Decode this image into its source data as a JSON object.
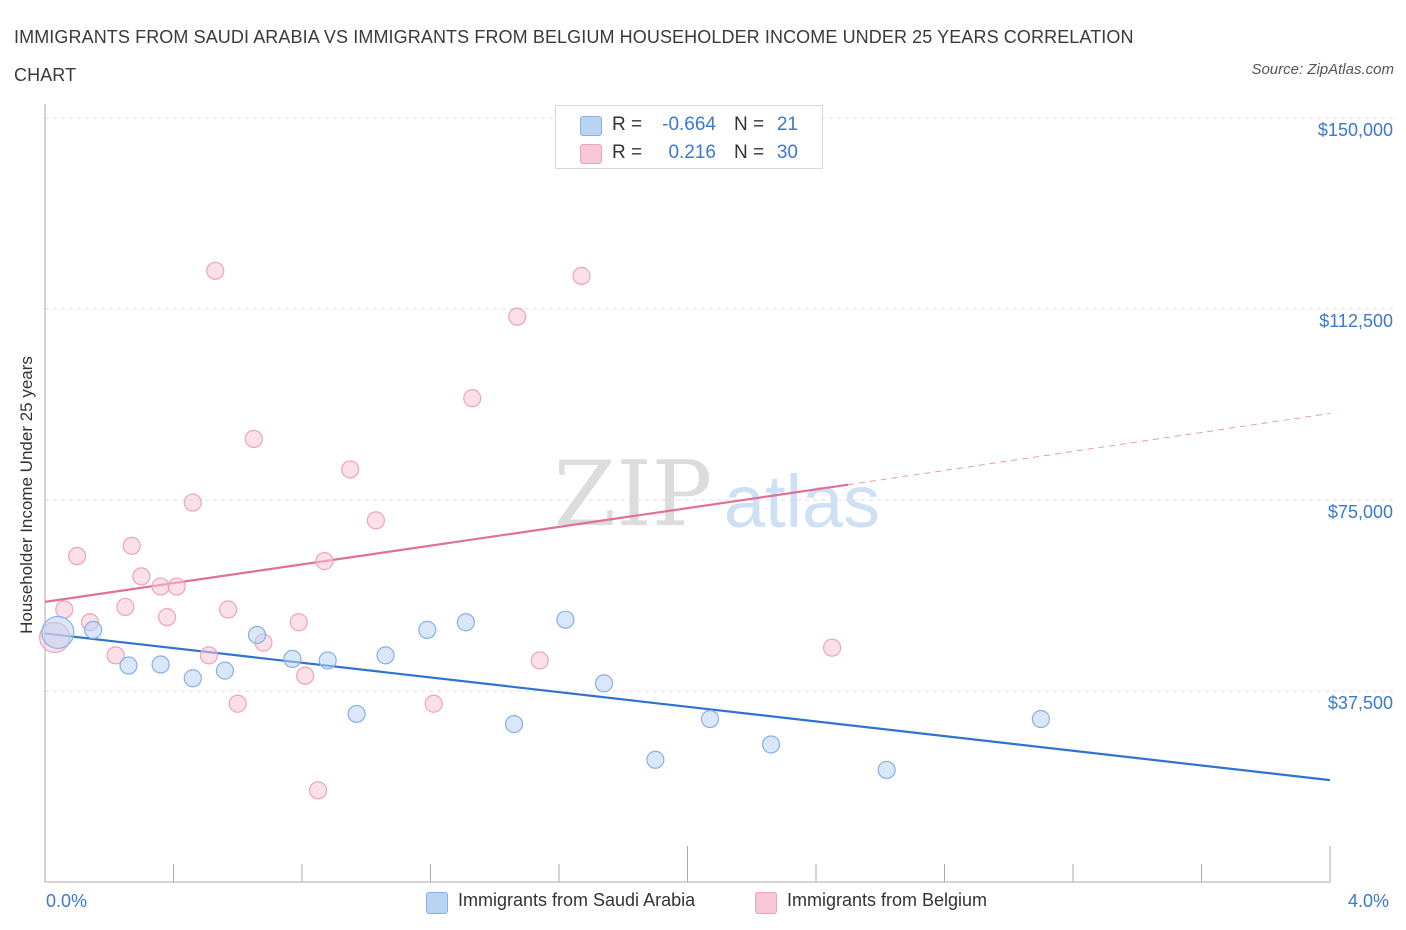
{
  "header": {
    "title": "IMMIGRANTS FROM SAUDI ARABIA VS IMMIGRANTS FROM BELGIUM HOUSEHOLDER INCOME UNDER 25 YEARS CORRELATION CHART",
    "source": "Source: ZipAtlas.com"
  },
  "watermark": {
    "zip": "ZIP",
    "atlas": "atlas"
  },
  "legend_top": {
    "rows": [
      {
        "r_label": "R =",
        "r_value": "-0.664",
        "n_label": "N =",
        "n_value": "21"
      },
      {
        "r_label": "R =",
        "r_value": "0.216",
        "n_label": "N =",
        "n_value": "30"
      }
    ]
  },
  "legend_bottom": {
    "items": [
      {
        "label": "Immigrants from Saudi Arabia"
      },
      {
        "label": "Immigrants from Belgium"
      }
    ]
  },
  "colors": {
    "saudi_fill": "#b9d3f3",
    "saudi_stroke": "#86b0e6",
    "saudi_line": "#2f72d1",
    "belgium_fill": "#f8c7d6",
    "belgium_stroke": "#eea3bb",
    "belgium_line": "#e07095",
    "tick_text": "#3b78d0",
    "grid": "#dddddd"
  },
  "chart_data": {
    "type": "scatter",
    "title": "IMMIGRANTS FROM SAUDI ARABIA VS IMMIGRANTS FROM BELGIUM HOUSEHOLDER INCOME UNDER 25 YEARS CORRELATION CHART",
    "xlabel": "",
    "ylabel": "Householder Income Under 25 years",
    "xlim": [
      0,
      4.0
    ],
    "ylim": [
      15000,
      155000
    ],
    "x_unit": "%",
    "x_tick_labels": [
      "0.0%",
      "4.0%"
    ],
    "y_ticks": [
      37500,
      75000,
      112500,
      150000
    ],
    "y_tick_labels": [
      "$37,500",
      "$75,000",
      "$112,500",
      "$150,000"
    ],
    "grid": "horizontal dashed",
    "legend_position": "bottom-center",
    "series": [
      {
        "name": "Immigrants from Saudi Arabia",
        "r": -0.664,
        "n": 21,
        "points": [
          [
            0.04,
            49000
          ],
          [
            0.15,
            49500
          ],
          [
            0.26,
            42500
          ],
          [
            0.36,
            42700
          ],
          [
            0.46,
            40000
          ],
          [
            0.56,
            41500
          ],
          [
            0.66,
            48500
          ],
          [
            0.77,
            43800
          ],
          [
            0.88,
            43500
          ],
          [
            0.97,
            33000
          ],
          [
            1.06,
            44500
          ],
          [
            1.19,
            49500
          ],
          [
            1.31,
            51000
          ],
          [
            1.46,
            31000
          ],
          [
            1.62,
            51500
          ],
          [
            1.74,
            39000
          ],
          [
            1.9,
            24000
          ],
          [
            2.07,
            32000
          ],
          [
            2.26,
            27000
          ],
          [
            2.62,
            22000
          ],
          [
            3.1,
            32000
          ]
        ],
        "trend": {
          "x": [
            0.0,
            4.0
          ],
          "y": [
            48800,
            20000
          ]
        }
      },
      {
        "name": "Immigrants from Belgium",
        "r": 0.216,
        "n": 30,
        "points": [
          [
            0.03,
            48000
          ],
          [
            0.06,
            53500
          ],
          [
            0.1,
            64000
          ],
          [
            0.14,
            51000
          ],
          [
            0.22,
            44500
          ],
          [
            0.25,
            54000
          ],
          [
            0.27,
            66000
          ],
          [
            0.3,
            60000
          ],
          [
            0.36,
            58000
          ],
          [
            0.38,
            52000
          ],
          [
            0.41,
            58000
          ],
          [
            0.46,
            74500
          ],
          [
            0.51,
            44500
          ],
          [
            0.53,
            120000
          ],
          [
            0.57,
            53500
          ],
          [
            0.6,
            35000
          ],
          [
            0.65,
            87000
          ],
          [
            0.68,
            47000
          ],
          [
            0.79,
            51000
          ],
          [
            0.81,
            40500
          ],
          [
            0.85,
            18000
          ],
          [
            0.87,
            63000
          ],
          [
            0.95,
            81000
          ],
          [
            1.03,
            71000
          ],
          [
            1.21,
            35000
          ],
          [
            1.33,
            95000
          ],
          [
            1.47,
            111000
          ],
          [
            1.54,
            43500
          ],
          [
            1.67,
            119000
          ],
          [
            2.45,
            46000
          ]
        ],
        "trend": {
          "x": [
            0.0,
            2.5
          ],
          "y": [
            55000,
            78000
          ]
        },
        "trend_extension": {
          "x": [
            2.5,
            4.0
          ],
          "y": [
            78000,
            92000
          ]
        }
      }
    ]
  }
}
